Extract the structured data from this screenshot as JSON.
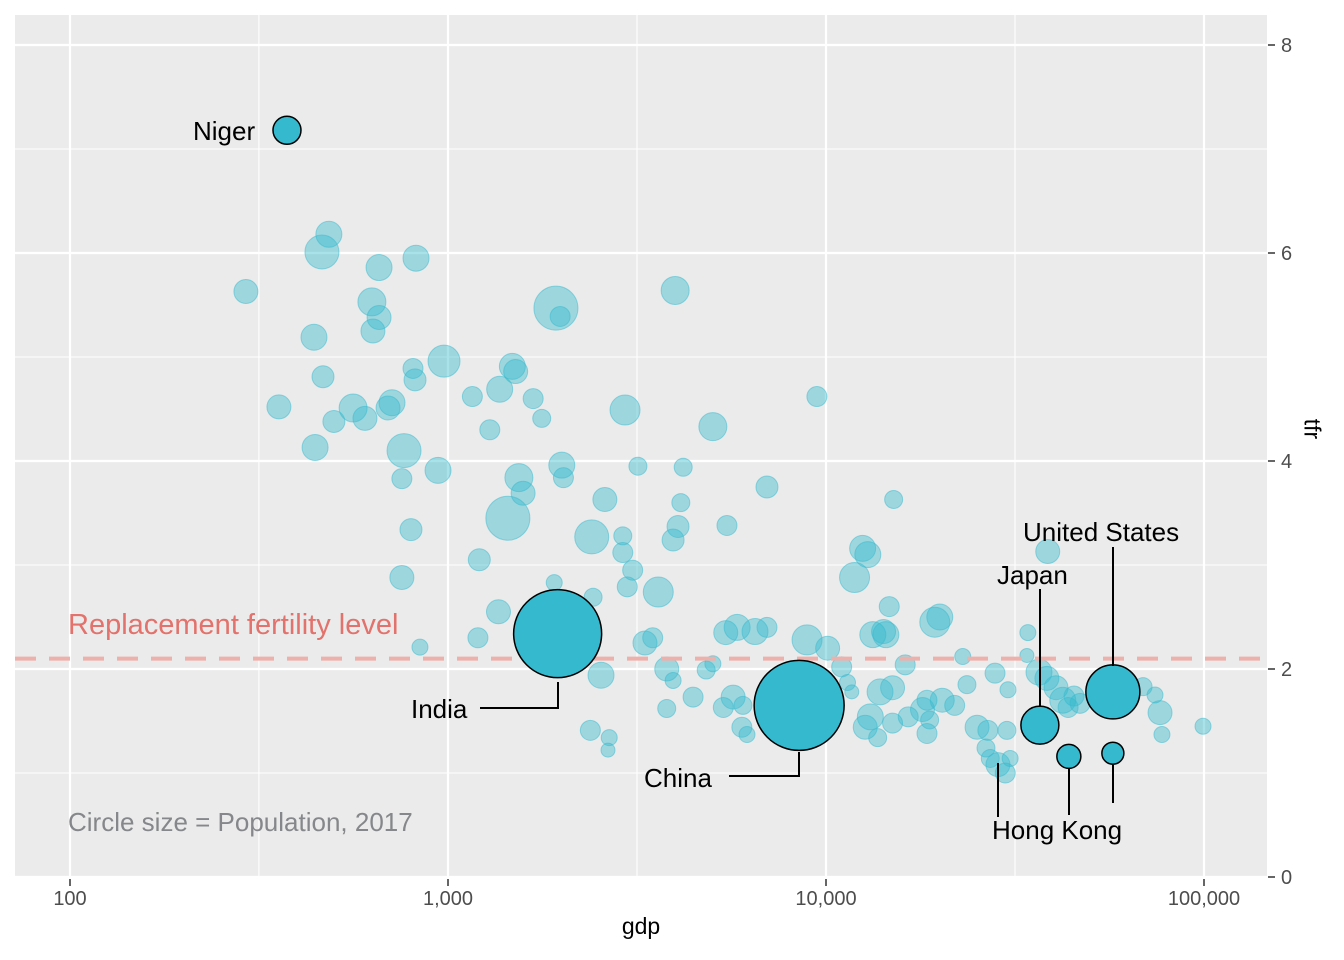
{
  "figure": {
    "background": "#FFFFFF",
    "panel_background": "#EBEBEB",
    "grid_color": "#FFFFFF",
    "tick_color": "#333333",
    "tick_label_color": "#4D4D4D",
    "bubble_color": "#35B9CE",
    "bubble_fill_opacity": 0.42,
    "bubble_outline_color": "#000000",
    "dash_color": "#EEB0AB",
    "annotation_color": "#E2726B",
    "caption_color": "#85878A"
  },
  "chart_data": {
    "type": "scatter",
    "xlabel": "gdp",
    "ylabel": "tfr",
    "x_scale": "log10",
    "xlim": [
      70,
      150000
    ],
    "ylim": [
      0,
      8.3
    ],
    "grid": true,
    "x_ticks": [
      {
        "value": 100,
        "label": "100"
      },
      {
        "value": 1000,
        "label": "1,000"
      },
      {
        "value": 10000,
        "label": "10,000"
      },
      {
        "value": 100000,
        "label": "100,000"
      }
    ],
    "x_minor": [
      316,
      3162,
      31623
    ],
    "y_ticks": [
      {
        "value": 0,
        "label": "0"
      },
      {
        "value": 2,
        "label": "2"
      },
      {
        "value": 4,
        "label": "4"
      },
      {
        "value": 6,
        "label": "6"
      },
      {
        "value": 8,
        "label": "8"
      }
    ],
    "y_minor": [
      1,
      3,
      5,
      7
    ],
    "hline": {
      "tfr": 2.1,
      "label": "Replacement fertility level"
    },
    "size_legend": "Circle size = Population, 2017",
    "labeled_points": [
      {
        "name": "Niger",
        "gdp": 375,
        "tfr": 7.18,
        "r": 14
      },
      {
        "name": "India",
        "gdp": 1950,
        "tfr": 2.34,
        "r": 44
      },
      {
        "name": "China",
        "gdp": 8490,
        "tfr": 1.65,
        "r": 45
      },
      {
        "name": "Japan",
        "gdp": 36800,
        "tfr": 1.46,
        "r": 19
      },
      {
        "name": "United States",
        "gdp": 57400,
        "tfr": 1.78,
        "r": 27
      },
      {
        "name": "Hong Kong",
        "gdp": 43900,
        "tfr": 1.16,
        "r": 12
      },
      {
        "name": "",
        "gdp": 57400,
        "tfr": 1.19,
        "r": 11
      }
    ],
    "points": [
      [
        484,
        6.18,
        13
      ],
      [
        464,
        6.01,
        17
      ],
      [
        657,
        5.86,
        13
      ],
      [
        823,
        5.95,
        13
      ],
      [
        292,
        5.63,
        12
      ],
      [
        629,
        5.53,
        14
      ],
      [
        657,
        5.38,
        12
      ],
      [
        633,
        5.25,
        12
      ],
      [
        442,
        5.19,
        13
      ],
      [
        1930,
        5.47,
        22
      ],
      [
        1980,
        5.39,
        10
      ],
      [
        3990,
        5.64,
        14
      ],
      [
        467,
        4.81,
        11
      ],
      [
        808,
        4.89,
        10
      ],
      [
        818,
        4.78,
        11
      ],
      [
        976,
        4.96,
        16
      ],
      [
        357,
        4.52,
        12
      ],
      [
        561,
        4.51,
        14
      ],
      [
        603,
        4.41,
        12
      ],
      [
        499,
        4.38,
        11
      ],
      [
        711,
        4.56,
        13
      ],
      [
        694,
        4.51,
        12
      ],
      [
        1160,
        4.62,
        10
      ],
      [
        1370,
        4.69,
        13
      ],
      [
        1480,
        4.91,
        13
      ],
      [
        1510,
        4.86,
        12
      ],
      [
        1680,
        4.6,
        10
      ],
      [
        1770,
        4.41,
        9
      ],
      [
        1290,
        4.3,
        10
      ],
      [
        445,
        4.13,
        13
      ],
      [
        765,
        4.1,
        17
      ],
      [
        941,
        3.91,
        13
      ],
      [
        755,
        3.83,
        10
      ],
      [
        2940,
        4.49,
        15
      ],
      [
        5020,
        4.33,
        14
      ],
      [
        9460,
        4.62,
        10
      ],
      [
        2000,
        3.96,
        13
      ],
      [
        2020,
        3.84,
        10
      ],
      [
        3180,
        3.95,
        9
      ],
      [
        4190,
        3.94,
        9
      ],
      [
        6980,
        3.75,
        11
      ],
      [
        2600,
        3.63,
        12
      ],
      [
        1540,
        3.84,
        14
      ],
      [
        1580,
        3.69,
        12
      ],
      [
        1440,
        3.45,
        22
      ],
      [
        2400,
        3.27,
        17
      ],
      [
        2900,
        3.28,
        9
      ],
      [
        2900,
        3.12,
        10
      ],
      [
        4130,
        3.6,
        9
      ],
      [
        4060,
        3.37,
        11
      ],
      [
        5470,
        3.38,
        10
      ],
      [
        3940,
        3.24,
        11
      ],
      [
        798,
        3.34,
        11
      ],
      [
        1210,
        3.05,
        11
      ],
      [
        1360,
        2.55,
        12
      ],
      [
        1200,
        2.3,
        10
      ],
      [
        843,
        2.21,
        8
      ],
      [
        755,
        2.88,
        12
      ],
      [
        1910,
        2.83,
        8
      ],
      [
        2420,
        2.69,
        9
      ],
      [
        3080,
        2.95,
        10
      ],
      [
        2980,
        2.79,
        10
      ],
      [
        3600,
        2.74,
        15
      ],
      [
        12500,
        3.16,
        13
      ],
      [
        15100,
        3.63,
        9
      ],
      [
        12900,
        3.1,
        13
      ],
      [
        11900,
        2.88,
        15
      ],
      [
        14700,
        2.6,
        10
      ],
      [
        14400,
        2.33,
        13
      ],
      [
        20000,
        2.5,
        13
      ],
      [
        38600,
        3.13,
        12
      ],
      [
        34200,
        2.35,
        8
      ],
      [
        3320,
        2.25,
        12
      ],
      [
        3480,
        2.3,
        10
      ],
      [
        3790,
        2.0,
        12
      ],
      [
        3940,
        1.89,
        8
      ],
      [
        3790,
        1.62,
        9
      ],
      [
        4450,
        1.73,
        10
      ],
      [
        4820,
        1.99,
        9
      ],
      [
        5020,
        2.05,
        8
      ],
      [
        5430,
        2.35,
        12
      ],
      [
        5820,
        2.4,
        13
      ],
      [
        6490,
        2.36,
        13
      ],
      [
        6980,
        2.4,
        10
      ],
      [
        5350,
        1.63,
        10
      ],
      [
        5680,
        1.73,
        12
      ],
      [
        6030,
        1.65,
        9
      ],
      [
        5990,
        1.44,
        10
      ],
      [
        6180,
        1.37,
        8
      ],
      [
        2540,
        1.94,
        13
      ],
      [
        2380,
        1.41,
        10
      ],
      [
        2670,
        1.34,
        8
      ],
      [
        2650,
        1.22,
        7
      ],
      [
        8910,
        2.28,
        15
      ],
      [
        10100,
        2.2,
        12
      ],
      [
        11000,
        2.02,
        10
      ],
      [
        11400,
        1.87,
        8
      ],
      [
        11700,
        1.78,
        7
      ],
      [
        13300,
        2.33,
        13
      ],
      [
        14200,
        2.36,
        12
      ],
      [
        13900,
        1.78,
        13
      ],
      [
        15000,
        1.82,
        12
      ],
      [
        13100,
        1.54,
        13
      ],
      [
        12700,
        1.44,
        12
      ],
      [
        13700,
        1.34,
        9
      ],
      [
        15000,
        1.48,
        10
      ],
      [
        16200,
        2.04,
        10
      ],
      [
        16500,
        1.54,
        10
      ],
      [
        18000,
        1.61,
        12
      ],
      [
        18500,
        1.7,
        10
      ],
      [
        18800,
        1.51,
        9
      ],
      [
        19400,
        2.45,
        15
      ],
      [
        20300,
        1.7,
        12
      ],
      [
        18500,
        1.38,
        10
      ],
      [
        21900,
        1.65,
        10
      ],
      [
        23000,
        2.12,
        8
      ],
      [
        23600,
        1.85,
        9
      ],
      [
        25100,
        1.44,
        12
      ],
      [
        26800,
        1.41,
        10
      ],
      [
        27200,
        1.14,
        9
      ],
      [
        28000,
        1.96,
        10
      ],
      [
        30300,
        1.8,
        8
      ],
      [
        30100,
        1.41,
        9
      ],
      [
        30700,
        1.14,
        8
      ],
      [
        34000,
        2.13,
        7
      ],
      [
        36600,
        1.97,
        13
      ],
      [
        38400,
        1.91,
        12
      ],
      [
        40600,
        1.82,
        12
      ],
      [
        42300,
        1.7,
        13
      ],
      [
        43700,
        1.63,
        10
      ],
      [
        45300,
        1.74,
        10
      ],
      [
        47000,
        1.67,
        10
      ],
      [
        69000,
        1.83,
        9
      ],
      [
        74200,
        1.75,
        8
      ],
      [
        76500,
        1.58,
        12
      ],
      [
        77400,
        1.37,
        8
      ],
      [
        99400,
        1.45,
        8
      ],
      [
        28500,
        1.08,
        12
      ],
      [
        29800,
        1.0,
        10
      ],
      [
        26500,
        1.24,
        9
      ]
    ]
  }
}
